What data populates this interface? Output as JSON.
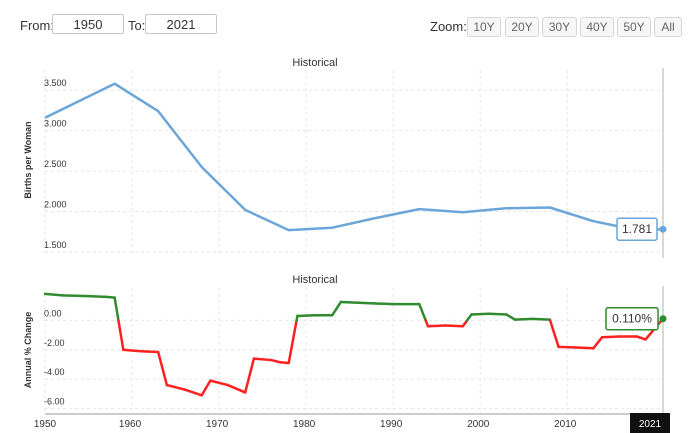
{
  "toolbar": {
    "from_label": "From:",
    "from_value": "1950",
    "to_label": "To:",
    "to_value": "2021",
    "zoom_label": "Zoom:",
    "zoom_buttons": [
      "10Y",
      "20Y",
      "30Y",
      "40Y",
      "50Y",
      "All"
    ]
  },
  "colors": {
    "fertility_line": "#6ca6d9",
    "positive_change": "#2e8b2e",
    "negative_change": "#ff2020",
    "grid": "#e6e6e6",
    "cursor": "#cccccc"
  },
  "chart_data": [
    {
      "type": "line",
      "title": "Historical",
      "ylabel": "Births per Woman",
      "xlabel": "",
      "ylim": [
        1.45,
        3.75
      ],
      "xlim": [
        1950,
        2021
      ],
      "y_ticks": [
        "3.500",
        "3.000",
        "2.500",
        "2.000",
        "1.500"
      ],
      "y_tick_values": [
        3.5,
        3.0,
        2.5,
        2.0,
        1.5
      ],
      "grid": true,
      "series": [
        {
          "x": [
            1950,
            1958,
            1963,
            1968,
            1973,
            1978,
            1983,
            1988,
            1993,
            1998,
            2003,
            2008,
            2013,
            2018,
            2021
          ],
          "y": [
            3.16,
            3.58,
            3.24,
            2.55,
            2.02,
            1.77,
            1.8,
            1.92,
            2.03,
            1.99,
            2.04,
            2.05,
            1.88,
            1.77,
            1.781
          ]
        }
      ],
      "current_value_label": "1.781"
    },
    {
      "type": "line",
      "title": "Historical",
      "ylabel": "Annual % Change",
      "xlabel": "",
      "ylim": [
        -6.3,
        2.2
      ],
      "xlim": [
        1950,
        2021
      ],
      "y_ticks": [
        "0.00",
        "-2.00",
        "-4.00",
        "-6.00"
      ],
      "y_tick_values": [
        0,
        -2,
        -4,
        -6
      ],
      "grid": true,
      "series": [
        {
          "x": [
            1950,
            1952,
            1955,
            1957,
            1958,
            1959,
            1961,
            1963,
            1964,
            1966,
            1968,
            1969,
            1971,
            1973,
            1974,
            1976,
            1977,
            1978,
            1979,
            1981,
            1983,
            1984,
            1986,
            1988,
            1990,
            1993,
            1994,
            1996,
            1998,
            1999,
            2001,
            2003,
            2004,
            2006,
            2008,
            2009,
            2011,
            2013,
            2014,
            2016,
            2018,
            2019,
            2021
          ],
          "y": [
            1.8,
            1.7,
            1.65,
            1.6,
            1.55,
            -2.0,
            -2.1,
            -2.15,
            -4.4,
            -4.7,
            -5.1,
            -4.1,
            -4.4,
            -4.9,
            -2.6,
            -2.7,
            -2.85,
            -2.9,
            0.3,
            0.35,
            0.35,
            1.25,
            1.2,
            1.15,
            1.1,
            1.1,
            -0.4,
            -0.35,
            -0.4,
            0.4,
            0.45,
            0.4,
            0.05,
            0.1,
            0.05,
            -1.8,
            -1.85,
            -1.9,
            -1.15,
            -1.1,
            -1.1,
            -1.3,
            0.11
          ]
        }
      ],
      "current_value_label": "0.110%"
    }
  ],
  "x_axis": {
    "ticks": [
      "1950",
      "1960",
      "1970",
      "1980",
      "1990",
      "2000",
      "2010"
    ],
    "tick_values": [
      1950,
      1960,
      1970,
      1980,
      1990,
      2000,
      2010
    ],
    "current_year_label": "2021"
  }
}
